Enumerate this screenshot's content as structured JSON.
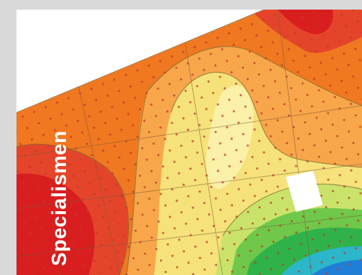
{
  "banner": {
    "label": "Specialismen"
  },
  "colors": {
    "frame_bg": "#d9d9d9",
    "panel_bg": "#ffffff",
    "contour_red": "#d81e1e",
    "contour_orange": "#f07820",
    "contour_light_orange": "#f8a64a",
    "contour_yellow": "#f6e27a",
    "contour_green": "#2fb24a",
    "contour_blue": "#1f7fd6",
    "logo": "#ffffff",
    "label": "#ffffff"
  },
  "icons": {
    "logo": "triangle-logo-icon"
  }
}
